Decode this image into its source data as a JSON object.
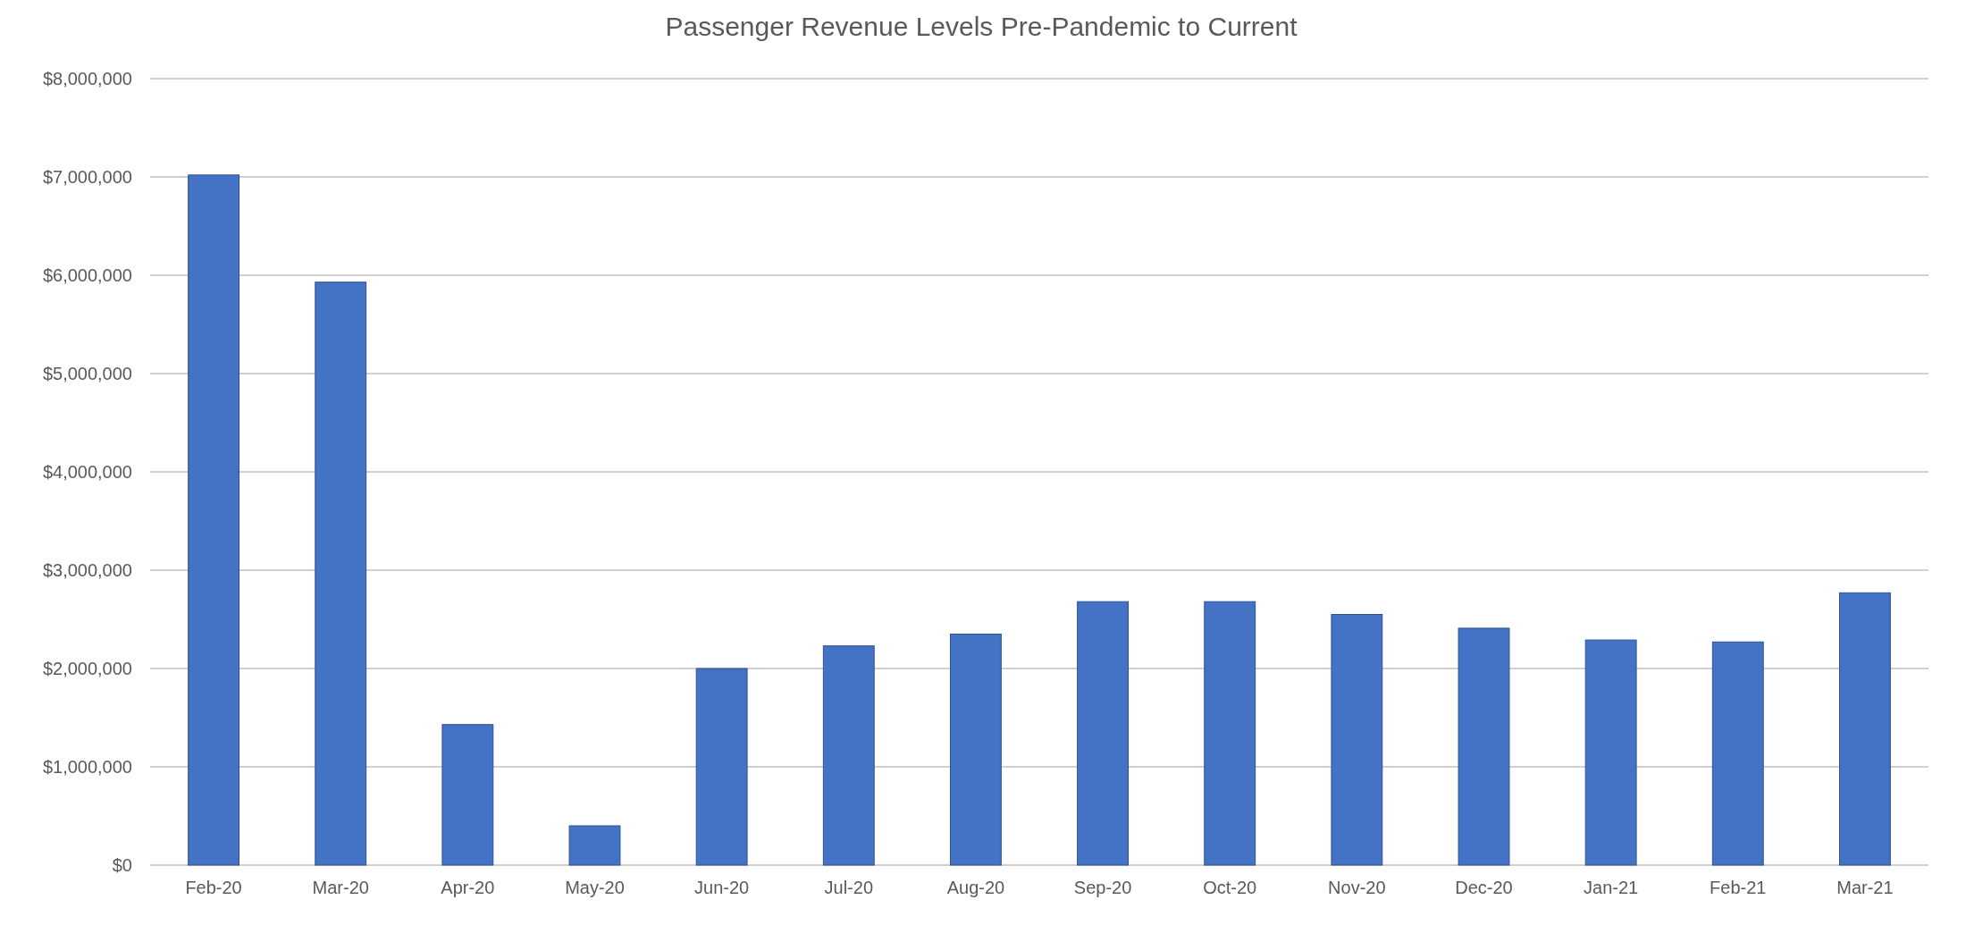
{
  "chart_data": {
    "type": "bar",
    "title": "Passenger Revenue Levels Pre-Pandemic to Current",
    "categories": [
      "Feb-20",
      "Mar-20",
      "Apr-20",
      "May-20",
      "Jun-20",
      "Jul-20",
      "Aug-20",
      "Sep-20",
      "Oct-20",
      "Nov-20",
      "Dec-20",
      "Jan-21",
      "Feb-21",
      "Mar-21"
    ],
    "values": [
      7020000,
      5930000,
      1430000,
      400000,
      2000000,
      2230000,
      2350000,
      2680000,
      2680000,
      2550000,
      2410000,
      2290000,
      2270000,
      2770000
    ],
    "color": "#4472c4",
    "ylim": [
      0,
      8000000
    ],
    "yticks": [
      {
        "value": 0,
        "label": "$0"
      },
      {
        "value": 1000000,
        "label": "$1,000,000"
      },
      {
        "value": 2000000,
        "label": "$2,000,000"
      },
      {
        "value": 3000000,
        "label": "$3,000,000"
      },
      {
        "value": 4000000,
        "label": "$4,000,000"
      },
      {
        "value": 5000000,
        "label": "$5,000,000"
      },
      {
        "value": 6000000,
        "label": "$6,000,000"
      },
      {
        "value": 7000000,
        "label": "$7,000,000"
      },
      {
        "value": 8000000,
        "label": "$8,000,000"
      }
    ],
    "grid": "y"
  }
}
